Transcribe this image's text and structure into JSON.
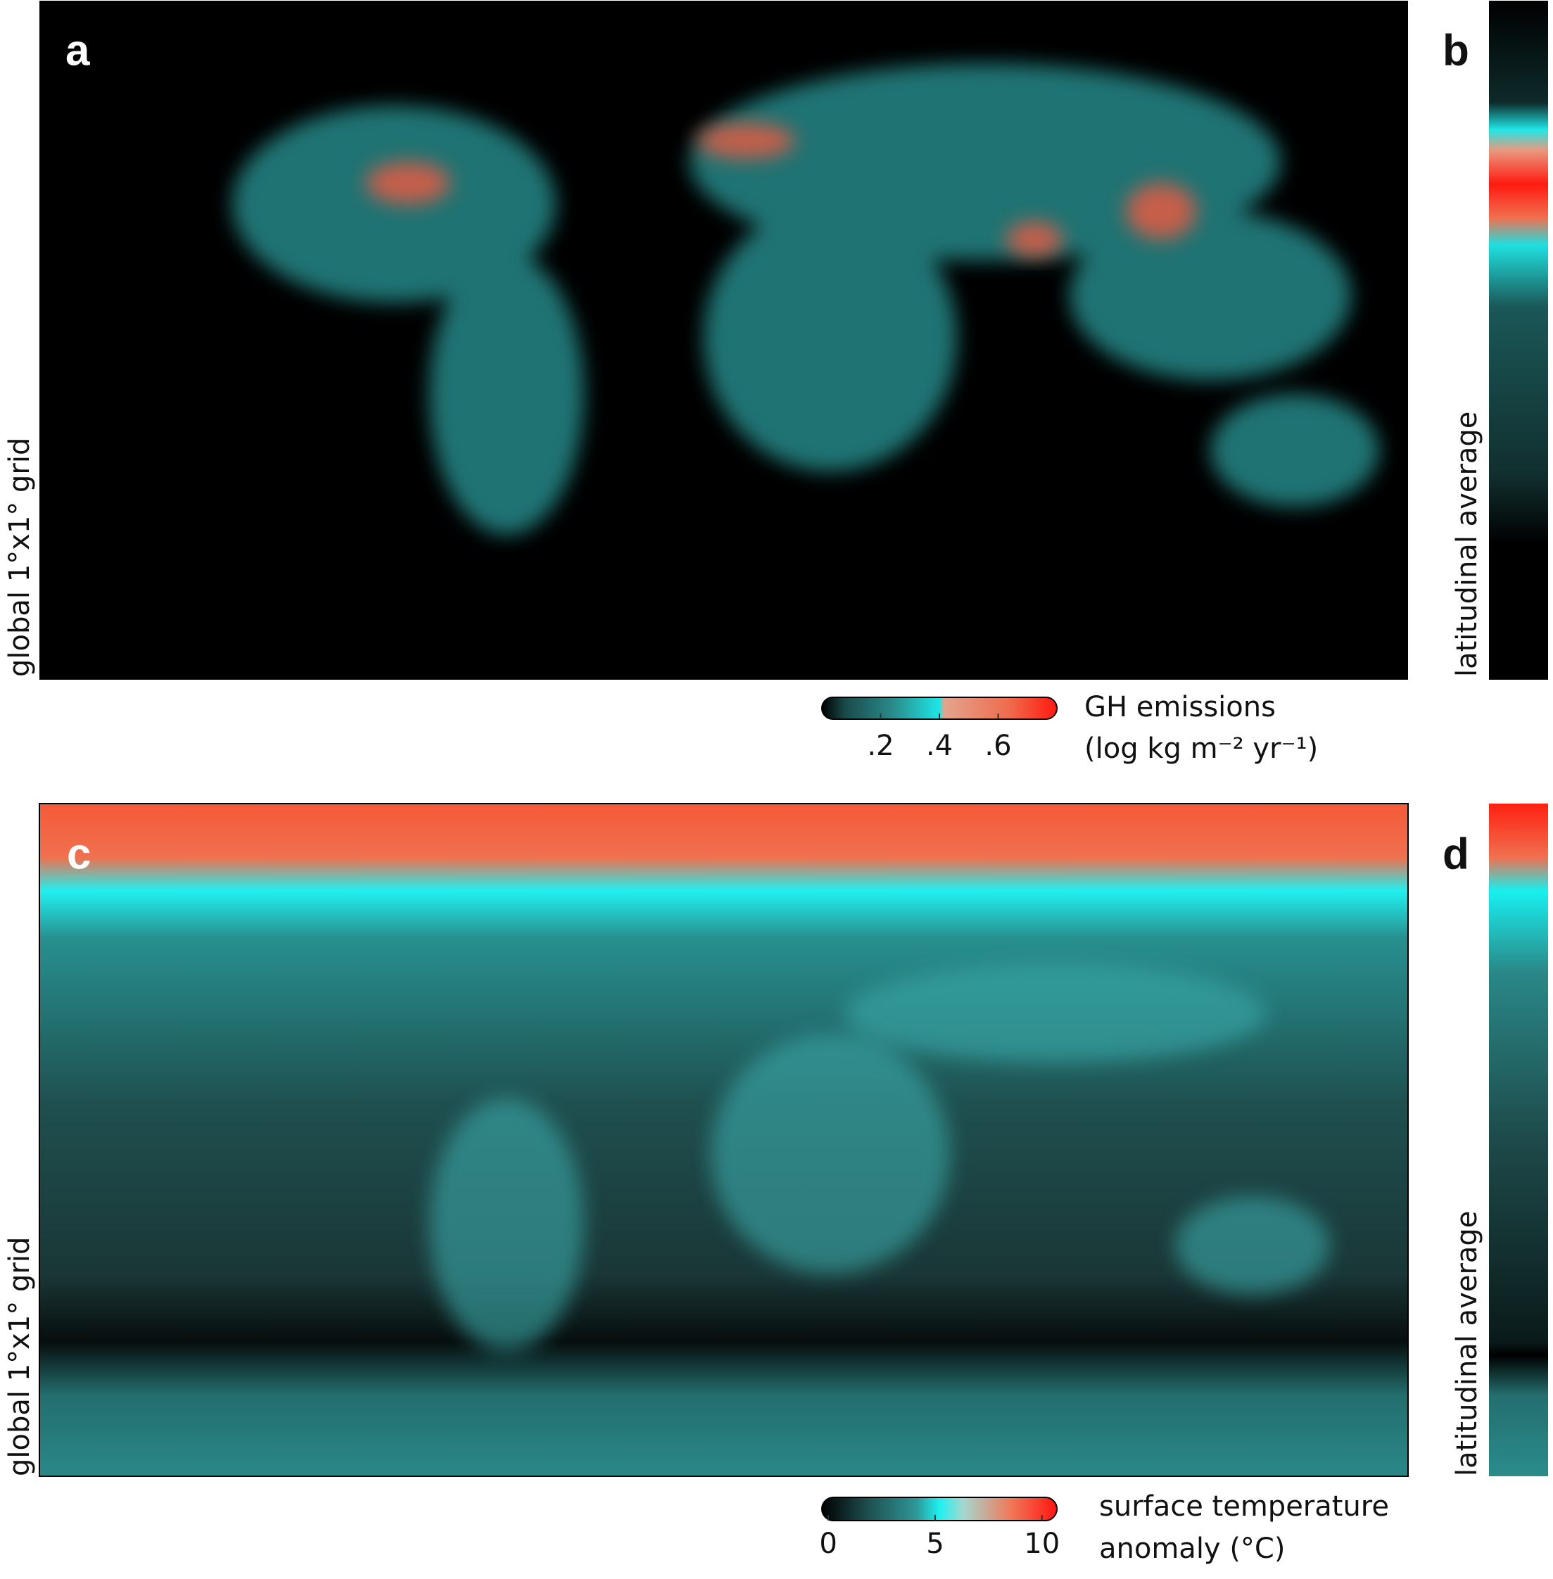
{
  "panels": [
    {
      "label": "a",
      "y_label": "global 1°x1° grid"
    },
    {
      "label": "b",
      "y_label": "latitudinal average"
    },
    {
      "label": "c",
      "y_label": "global 1°x1° grid"
    },
    {
      "label": "d",
      "y_label": "latitudinal average"
    }
  ],
  "colorbars": [
    {
      "title": [
        "GH emissions",
        "(log kg m⁻² yr⁻¹)"
      ],
      "range": [
        0,
        0.8
      ],
      "ticks": [
        {
          "value": 0.2,
          "label": ".2"
        },
        {
          "value": 0.4,
          "label": ".4"
        },
        {
          "value": 0.6,
          "label": ".6"
        }
      ]
    },
    {
      "title": [
        "surface temperature",
        "anomaly (°C)"
      ],
      "range": [
        -0.3,
        10.7
      ],
      "ticks": [
        0,
        5,
        10
      ]
    }
  ]
}
